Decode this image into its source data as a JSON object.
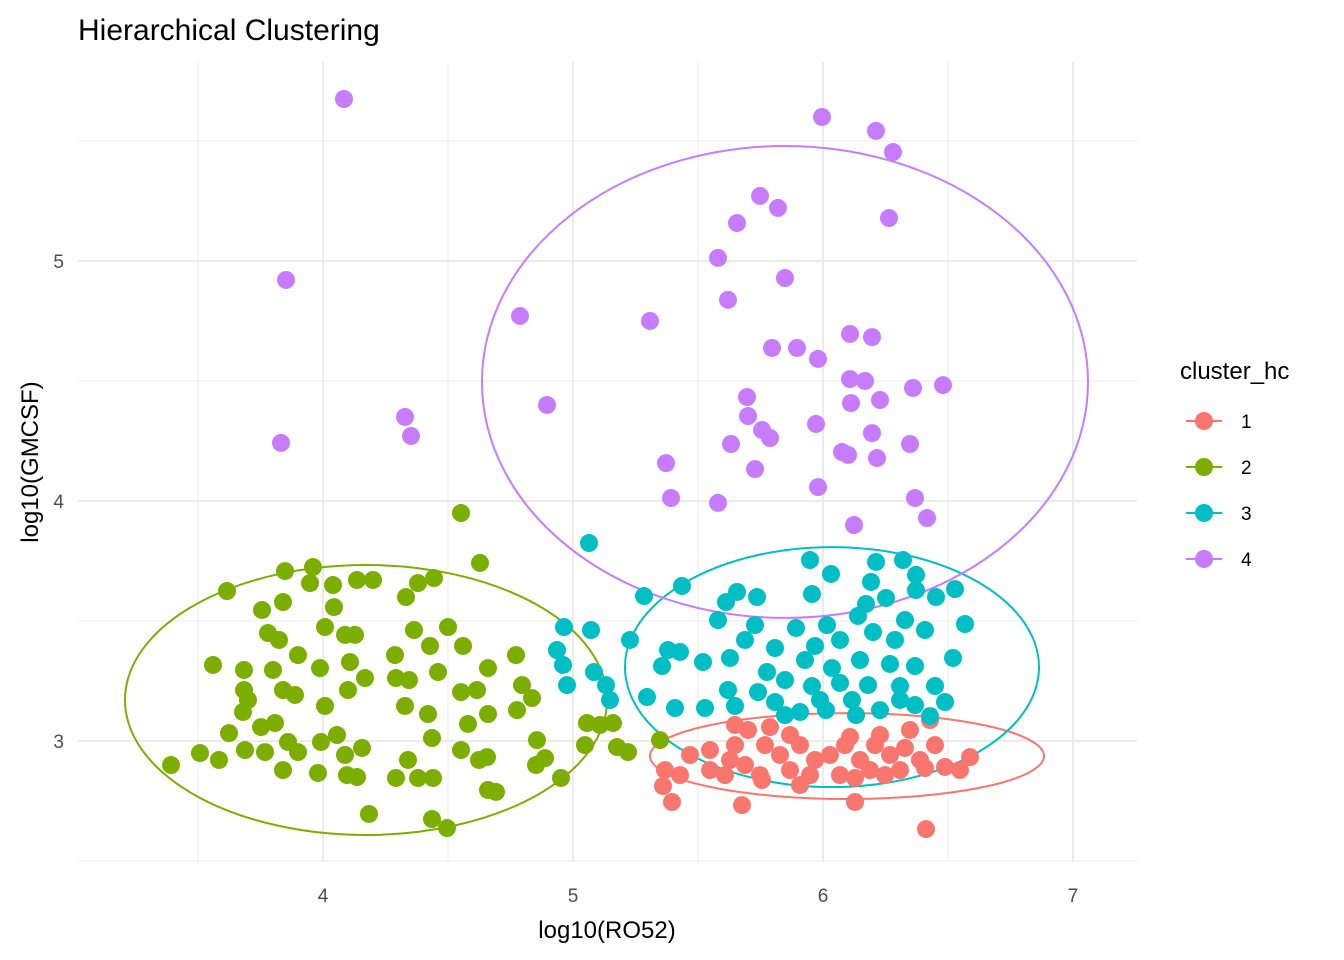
{
  "chart_data": {
    "type": "scatter",
    "title": "Hierarchical Clustering",
    "xlabel": "log10(RO52)",
    "ylabel": "log10(GMCSF)",
    "xlim": [
      3.02,
      7.256
    ],
    "ylim": [
      2.496,
      5.829
    ],
    "x_ticks": [
      4,
      5,
      6,
      7
    ],
    "y_ticks": [
      3,
      4,
      5
    ],
    "x_minor": [
      3.5,
      4.5,
      5.5,
      6.5
    ],
    "y_minor": [
      2.5,
      3.5,
      4.5,
      5.5
    ],
    "grid": true,
    "legend": {
      "title": "cluster_hc",
      "placement": "right"
    },
    "series": [
      {
        "name": "1",
        "color": "#F8766D",
        "ellipse": {
          "cx": 6.096,
          "cy": 2.9375,
          "rx": 0.788,
          "ry": 0.179
        },
        "points": [
          [
            5.648,
            3.067
          ],
          [
            5.7,
            3.046
          ],
          [
            5.788,
            3.058
          ],
          [
            5.868,
            3.025
          ],
          [
            6.108,
            3.017
          ],
          [
            6.228,
            3.025
          ],
          [
            6.348,
            3.046
          ],
          [
            6.428,
            3.0875
          ],
          [
            5.468,
            2.942
          ],
          [
            5.548,
            2.9625
          ],
          [
            5.628,
            2.921
          ],
          [
            5.688,
            2.9
          ],
          [
            5.768,
            2.983
          ],
          [
            5.828,
            2.942
          ],
          [
            5.908,
            2.983
          ],
          [
            5.968,
            2.921
          ],
          [
            6.028,
            2.942
          ],
          [
            6.088,
            2.983
          ],
          [
            6.148,
            2.921
          ],
          [
            6.208,
            2.983
          ],
          [
            6.268,
            2.942
          ],
          [
            6.328,
            2.971
          ],
          [
            6.388,
            2.921
          ],
          [
            6.448,
            2.983
          ],
          [
            6.488,
            2.892
          ],
          [
            6.588,
            2.933
          ],
          [
            5.368,
            2.879
          ],
          [
            5.428,
            2.858
          ],
          [
            5.548,
            2.879
          ],
          [
            5.608,
            2.858
          ],
          [
            5.748,
            2.858
          ],
          [
            5.868,
            2.879
          ],
          [
            5.948,
            2.858
          ],
          [
            6.068,
            2.858
          ],
          [
            6.188,
            2.879
          ],
          [
            6.308,
            2.879
          ],
          [
            6.408,
            2.8875
          ],
          [
            5.36,
            2.8125
          ],
          [
            5.756,
            2.8375
          ],
          [
            5.908,
            2.817
          ],
          [
            6.128,
            2.846
          ],
          [
            6.248,
            2.858
          ],
          [
            5.396,
            2.746
          ],
          [
            5.676,
            2.733
          ],
          [
            6.128,
            2.746
          ],
          [
            6.412,
            2.633
          ],
          [
            5.648,
            2.983
          ],
          [
            6.548,
            2.879
          ]
        ]
      },
      {
        "name": "2",
        "color": "#7CAE00",
        "ellipse": {
          "cx": 4.172,
          "cy": 3.171,
          "rx": 0.964,
          "ry": 0.5625
        },
        "points": [
          [
            4.552,
            3.95
          ],
          [
            4.628,
            3.742
          ],
          [
            3.616,
            3.625
          ],
          [
            3.96,
            3.725
          ],
          [
            3.848,
            3.708
          ],
          [
            4.04,
            3.65
          ],
          [
            4.136,
            3.671
          ],
          [
            4.2,
            3.671
          ],
          [
            4.444,
            3.679
          ],
          [
            4.38,
            3.658
          ],
          [
            3.948,
            3.658
          ],
          [
            3.756,
            3.546
          ],
          [
            3.84,
            3.579
          ],
          [
            4.044,
            3.558
          ],
          [
            4.332,
            3.6
          ],
          [
            4.008,
            3.475
          ],
          [
            3.78,
            3.45
          ],
          [
            3.824,
            3.421
          ],
          [
            3.9,
            3.358
          ],
          [
            4.088,
            3.442
          ],
          [
            4.128,
            3.442
          ],
          [
            4.364,
            3.4625
          ],
          [
            4.5,
            3.475
          ],
          [
            4.428,
            3.396
          ],
          [
            4.56,
            3.396
          ],
          [
            4.772,
            3.358
          ],
          [
            4.288,
            3.358
          ],
          [
            3.56,
            3.317
          ],
          [
            3.684,
            3.296
          ],
          [
            3.8,
            3.296
          ],
          [
            3.988,
            3.304
          ],
          [
            4.108,
            3.329
          ],
          [
            4.168,
            3.2625
          ],
          [
            4.292,
            3.2625
          ],
          [
            4.46,
            3.2875
          ],
          [
            4.66,
            3.304
          ],
          [
            3.684,
            3.2125
          ],
          [
            3.7,
            3.171
          ],
          [
            3.84,
            3.2125
          ],
          [
            3.888,
            3.192
          ],
          [
            4.1,
            3.2125
          ],
          [
            4.344,
            3.254
          ],
          [
            4.552,
            3.204
          ],
          [
            4.616,
            3.2125
          ],
          [
            4.796,
            3.233
          ],
          [
            4.836,
            3.179
          ],
          [
            4.008,
            3.146
          ],
          [
            3.68,
            3.121
          ],
          [
            4.328,
            3.146
          ],
          [
            4.42,
            3.1125
          ],
          [
            4.66,
            3.1125
          ],
          [
            4.776,
            3.129
          ],
          [
            4.58,
            3.071
          ],
          [
            3.752,
            3.058
          ],
          [
            3.808,
            3.075
          ],
          [
            3.624,
            3.033
          ],
          [
            4.056,
            3.025
          ],
          [
            3.992,
            2.996
          ],
          [
            4.436,
            3.0125
          ],
          [
            3.86,
            2.996
          ],
          [
            3.688,
            2.9625
          ],
          [
            3.768,
            2.954
          ],
          [
            3.9,
            2.954
          ],
          [
            4.156,
            2.971
          ],
          [
            4.088,
            2.942
          ],
          [
            4.552,
            2.9625
          ],
          [
            4.656,
            2.933
          ],
          [
            4.856,
            3.004
          ],
          [
            4.888,
            2.929
          ],
          [
            5.056,
            3.075
          ],
          [
            5.16,
            3.075
          ],
          [
            5.108,
            3.067
          ],
          [
            5.048,
            2.983
          ],
          [
            5.176,
            2.975
          ],
          [
            5.22,
            2.954
          ],
          [
            5.348,
            3.004
          ],
          [
            3.392,
            2.9
          ],
          [
            3.508,
            2.95
          ],
          [
            3.584,
            2.921
          ],
          [
            3.84,
            2.879
          ],
          [
            3.98,
            2.867
          ],
          [
            4.34,
            2.921
          ],
          [
            4.38,
            2.846
          ],
          [
            4.44,
            2.846
          ],
          [
            4.292,
            2.846
          ],
          [
            4.096,
            2.858
          ],
          [
            4.136,
            2.85
          ],
          [
            4.624,
            2.921
          ],
          [
            4.852,
            2.9
          ],
          [
            4.952,
            2.846
          ],
          [
            4.66,
            2.796
          ],
          [
            4.692,
            2.788
          ],
          [
            4.184,
            2.696
          ],
          [
            4.436,
            2.675
          ],
          [
            4.496,
            2.6375
          ]
        ]
      },
      {
        "name": "3",
        "color": "#00BFC4",
        "ellipse": {
          "cx": 6.036,
          "cy": 3.308,
          "rx": 0.828,
          "ry": 0.5
        },
        "points": [
          [
            5.064,
            3.825
          ],
          [
            5.436,
            3.646
          ],
          [
            5.284,
            3.604
          ],
          [
            5.948,
            3.754
          ],
          [
            6.032,
            3.696
          ],
          [
            6.212,
            3.746
          ],
          [
            6.32,
            3.754
          ],
          [
            6.372,
            3.692
          ],
          [
            6.192,
            3.663
          ],
          [
            5.656,
            3.621
          ],
          [
            5.736,
            3.6
          ],
          [
            5.612,
            3.579
          ],
          [
            5.956,
            3.6125
          ],
          [
            6.172,
            3.571
          ],
          [
            6.252,
            3.596
          ],
          [
            6.372,
            3.629
          ],
          [
            6.528,
            3.633
          ],
          [
            6.452,
            3.6
          ],
          [
            4.964,
            3.475
          ],
          [
            5.072,
            3.4625
          ],
          [
            5.58,
            3.504
          ],
          [
            5.728,
            3.483
          ],
          [
            5.892,
            3.471
          ],
          [
            6.016,
            3.483
          ],
          [
            6.14,
            3.521
          ],
          [
            6.328,
            3.504
          ],
          [
            6.568,
            3.4875
          ],
          [
            5.228,
            3.421
          ],
          [
            5.38,
            3.379
          ],
          [
            5.428,
            3.371
          ],
          [
            5.688,
            3.421
          ],
          [
            5.808,
            3.3875
          ],
          [
            5.968,
            3.396
          ],
          [
            6.068,
            3.421
          ],
          [
            6.2,
            3.454
          ],
          [
            6.288,
            3.421
          ],
          [
            6.408,
            3.4625
          ],
          [
            4.936,
            3.379
          ],
          [
            4.96,
            3.317
          ],
          [
            5.356,
            3.3125
          ],
          [
            5.52,
            3.329
          ],
          [
            5.628,
            3.346
          ],
          [
            5.776,
            3.2875
          ],
          [
            5.928,
            3.3375
          ],
          [
            6.036,
            3.304
          ],
          [
            6.148,
            3.3375
          ],
          [
            6.268,
            3.321
          ],
          [
            6.368,
            3.3125
          ],
          [
            6.52,
            3.346
          ],
          [
            5.084,
            3.2875
          ],
          [
            5.132,
            3.233
          ],
          [
            4.976,
            3.233
          ],
          [
            5.62,
            3.2125
          ],
          [
            5.74,
            3.204
          ],
          [
            5.848,
            3.254
          ],
          [
            5.956,
            3.229
          ],
          [
            6.068,
            3.242
          ],
          [
            6.18,
            3.233
          ],
          [
            6.308,
            3.229
          ],
          [
            6.448,
            3.229
          ],
          [
            5.148,
            3.171
          ],
          [
            5.296,
            3.1833
          ],
          [
            5.648,
            3.146
          ],
          [
            5.808,
            3.1625
          ],
          [
            5.908,
            3.121
          ],
          [
            6.012,
            3.129
          ],
          [
            6.132,
            3.108
          ],
          [
            6.228,
            3.129
          ],
          [
            6.368,
            3.15
          ],
          [
            6.488,
            3.1625
          ],
          [
            5.408,
            3.1375
          ],
          [
            5.528,
            3.1375
          ],
          [
            5.848,
            3.108
          ],
          [
            6.428,
            3.104
          ],
          [
            5.988,
            3.171
          ],
          [
            6.116,
            3.171
          ],
          [
            6.308,
            3.171
          ]
        ]
      },
      {
        "name": "4",
        "color": "#C77CFF",
        "ellipse": {
          "cx": 5.848,
          "cy": 4.496,
          "rx": 1.212,
          "ry": 0.983
        },
        "points": [
          [
            4.084,
            5.675
          ],
          [
            5.996,
            5.6
          ],
          [
            6.212,
            5.542
          ],
          [
            6.28,
            5.454
          ],
          [
            5.748,
            5.271
          ],
          [
            5.82,
            5.221
          ],
          [
            5.656,
            5.158
          ],
          [
            6.264,
            5.179
          ],
          [
            5.58,
            5.013
          ],
          [
            3.852,
            4.921
          ],
          [
            5.848,
            4.929
          ],
          [
            5.62,
            4.838
          ],
          [
            4.788,
            4.771
          ],
          [
            5.308,
            4.75
          ],
          [
            5.796,
            4.6375
          ],
          [
            5.896,
            4.6375
          ],
          [
            5.98,
            4.592
          ],
          [
            6.108,
            4.696
          ],
          [
            6.196,
            4.683
          ],
          [
            6.108,
            4.508
          ],
          [
            6.168,
            4.5
          ],
          [
            5.696,
            4.433
          ],
          [
            6.36,
            4.471
          ],
          [
            6.48,
            4.483
          ],
          [
            6.228,
            4.421
          ],
          [
            6.112,
            4.408
          ],
          [
            4.328,
            4.35
          ],
          [
            5.7,
            4.354
          ],
          [
            5.756,
            4.296
          ],
          [
            5.788,
            4.2625
          ],
          [
            5.632,
            4.2375
          ],
          [
            5.972,
            4.321
          ],
          [
            6.196,
            4.283
          ],
          [
            4.352,
            4.271
          ],
          [
            3.832,
            4.242
          ],
          [
            6.348,
            4.2375
          ],
          [
            4.896,
            4.4
          ],
          [
            6.076,
            4.204
          ],
          [
            6.1,
            4.192
          ],
          [
            6.216,
            4.179
          ],
          [
            5.372,
            4.158
          ],
          [
            5.728,
            4.133
          ],
          [
            5.98,
            4.058
          ],
          [
            5.392,
            4.0125
          ],
          [
            5.58,
            3.992
          ],
          [
            6.368,
            4.0125
          ],
          [
            6.416,
            3.929
          ],
          [
            6.124,
            3.9
          ]
        ]
      }
    ]
  }
}
